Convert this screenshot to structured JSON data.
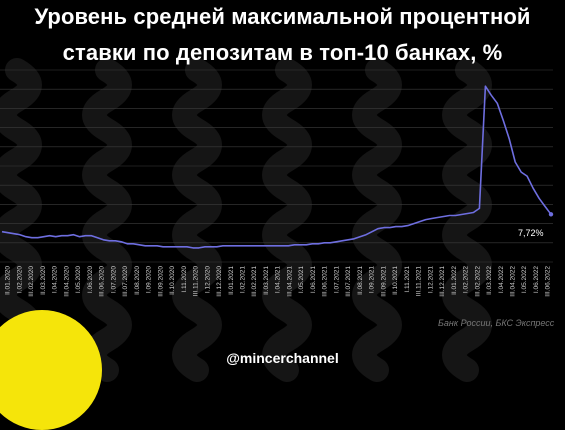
{
  "title": {
    "line1": "Уровень средней максимальной процентной",
    "line2": "ставки по депозитам в топ-10 банках, %"
  },
  "source": "Банк России, БКС Экспресс",
  "handle": "@mincerchannel",
  "colors": {
    "background": "#000000",
    "line": "#6e6ee0",
    "grid": "#3c3c3c",
    "wave": "#151515",
    "logo": "#f5e50a"
  },
  "chart_data": {
    "type": "line",
    "title": "Уровень средней максимальной процентной ставки по депозитам в топ-10 банках, %",
    "xlabel": "",
    "ylabel": "",
    "ylim": [
      3,
      22
    ],
    "grid": true,
    "annotation": "7,72%",
    "x_tick_labels": [
      "II.01.2020",
      "I.02.2020",
      "III.02.2020",
      "II.03.2020",
      "I.04.2020",
      "III.04.2020",
      "I.05.2020",
      "I.06.2020",
      "III.06.2020",
      "I.07.2020",
      "III.07.2020",
      "II.08.2020",
      "I.09.2020",
      "III.09.2020",
      "II.10.2020",
      "I.11.2020",
      "III.11.2020",
      "I.12.2020",
      "III.12.2020",
      "II.01.2021",
      "I.02.2021",
      "III.02.2021",
      "II.03.2021",
      "I.04.2021",
      "III.04.2021",
      "I.05.2021",
      "I.06.2021",
      "III.06.2021",
      "I.07.2021",
      "III.07.2021",
      "II.08.2021",
      "I.09.2021",
      "III.09.2021",
      "II.10.2021",
      "I.11.2021",
      "III.11.2021",
      "I.12.2021",
      "III.12.2021",
      "II.01.2022",
      "I.02.2022",
      "III.02.2022",
      "II.03.2022",
      "I.04.2022",
      "III.04.2022",
      "I.05.2022",
      "I.06.2022",
      "III.06.2022"
    ],
    "series": [
      {
        "values": [
          6.0,
          5.9,
          5.8,
          5.7,
          5.5,
          5.4,
          5.4,
          5.5,
          5.6,
          5.5,
          5.6,
          5.6,
          5.7,
          5.5,
          5.6,
          5.6,
          5.4,
          5.2,
          5.1,
          5.1,
          5.0,
          4.8,
          4.8,
          4.7,
          4.6,
          4.6,
          4.6,
          4.5,
          4.5,
          4.5,
          4.5,
          4.5,
          4.4,
          4.4,
          4.5,
          4.5,
          4.5,
          4.6,
          4.6,
          4.6,
          4.6,
          4.6,
          4.6,
          4.6,
          4.6,
          4.6,
          4.6,
          4.6,
          4.6,
          4.7,
          4.7,
          4.7,
          4.8,
          4.8,
          4.9,
          4.9,
          5.0,
          5.1,
          5.2,
          5.3,
          5.5,
          5.7,
          6.0,
          6.3,
          6.4,
          6.4,
          6.5,
          6.5,
          6.6,
          6.8,
          7.0,
          7.2,
          7.3,
          7.4,
          7.5,
          7.6,
          7.6,
          7.7,
          7.8,
          7.9,
          8.3,
          20.4,
          19.5,
          18.7,
          17.0,
          15.2,
          12.9,
          11.9,
          11.5,
          10.3,
          9.3,
          8.5,
          7.72
        ]
      }
    ]
  }
}
